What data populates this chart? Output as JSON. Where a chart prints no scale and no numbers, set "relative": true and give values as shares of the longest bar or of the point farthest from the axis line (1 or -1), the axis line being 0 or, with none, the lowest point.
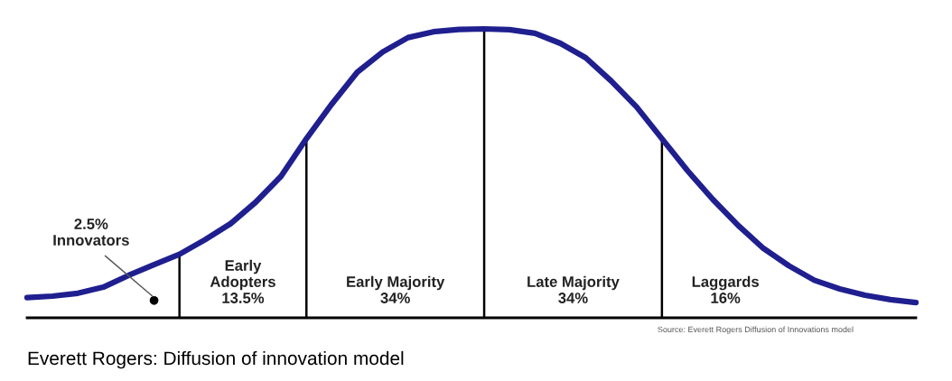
{
  "chart_data": {
    "type": "line",
    "relative": true,
    "categories": [
      null,
      null,
      null,
      null,
      null,
      null,
      null,
      null,
      null,
      null,
      null,
      null,
      null,
      null,
      null,
      null,
      null,
      null,
      null,
      null,
      null,
      null,
      null,
      null,
      null,
      null,
      null,
      null,
      null,
      null,
      null,
      null,
      null,
      null,
      null,
      null
    ],
    "series": [
      {
        "color": "#1f1f8f",
        "values": [
          0.07,
          0.075,
          0.085,
          0.106,
          0.147,
          0.184,
          0.22,
          0.27,
          0.325,
          0.4,
          0.49,
          0.62,
          0.74,
          0.85,
          0.92,
          0.97,
          0.99,
          0.998,
          1.0,
          0.997,
          0.985,
          0.95,
          0.9,
          0.82,
          0.73,
          0.62,
          0.51,
          0.41,
          0.32,
          0.24,
          0.18,
          0.13,
          0.1,
          0.078,
          0.063,
          0.053
        ]
      }
    ],
    "annotations": [
      "2.5%\nInnovators",
      "Early\nAdopters\n13.5%",
      "Early Majority\n34%",
      "Late Majority\n34%",
      "Laggards\n16%",
      "Source: Everett Rogers Diffusion of Innovations model",
      "Everett Rogers: Diffusion of innovation model"
    ],
    "legend": false,
    "marker": "none",
    "line_style": "solid"
  }
}
